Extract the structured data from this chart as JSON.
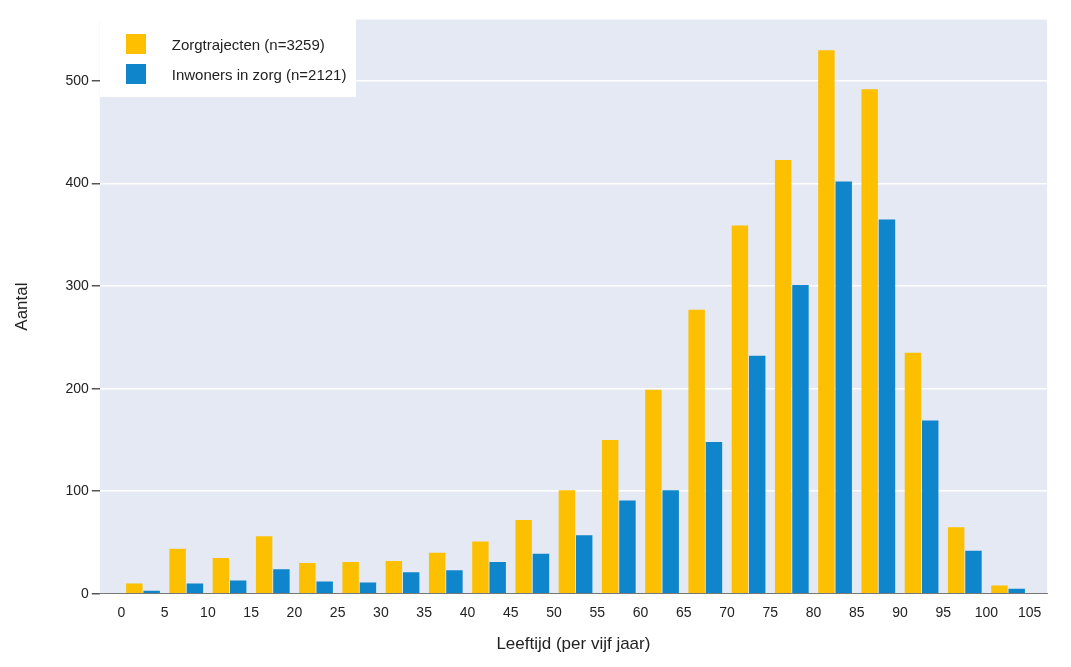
{
  "chart_data": {
    "type": "bar",
    "xlabel": "Leeftijd (per vijf jaar)",
    "ylabel": "Aantal",
    "x": [
      2.5,
      7.5,
      12.5,
      17.5,
      22.5,
      27.5,
      32.5,
      37.5,
      42.5,
      47.5,
      52.5,
      57.5,
      62.5,
      67.5,
      72.5,
      77.5,
      82.5,
      87.5,
      92.5,
      97.5,
      102.5
    ],
    "series": [
      {
        "name": "Zorgtrajecten (n=3259)",
        "color": "#fcc000",
        "values": [
          10,
          44,
          35,
          56,
          30,
          31,
          32,
          40,
          51,
          72,
          101,
          150,
          199,
          277,
          359,
          423,
          530,
          492,
          235,
          65,
          8
        ]
      },
      {
        "name": "Inwoners in zorg (n=2121)",
        "color": "#0f86cc",
        "values": [
          3,
          10,
          13,
          24,
          12,
          11,
          21,
          23,
          31,
          39,
          57,
          91,
          101,
          148,
          232,
          301,
          402,
          365,
          169,
          42,
          5
        ]
      }
    ],
    "xlim": [
      -2.5,
      107
    ],
    "xticks": [
      0,
      5,
      10,
      15,
      20,
      25,
      30,
      35,
      40,
      45,
      50,
      55,
      60,
      65,
      70,
      75,
      80,
      85,
      90,
      95,
      100,
      105
    ],
    "ylim": [
      0,
      560
    ],
    "yticks": [
      0,
      100,
      200,
      300,
      400,
      500
    ],
    "grid": "y",
    "legend": "top left"
  }
}
